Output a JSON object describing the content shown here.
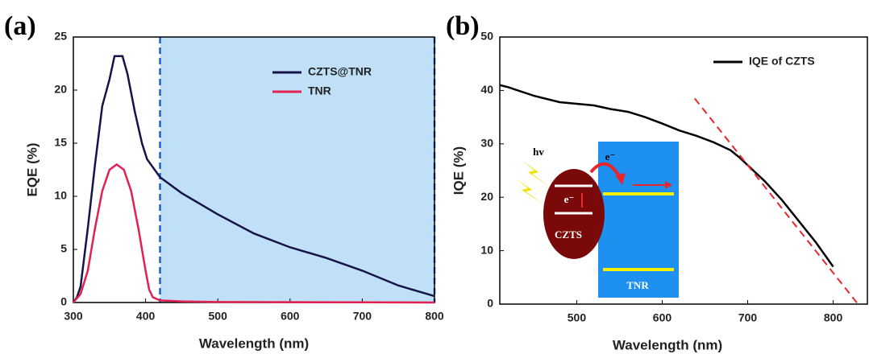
{
  "chart_data": [
    {
      "type": "line",
      "panel_label": "(a)",
      "xlabel": "Wavelength (nm)",
      "ylabel": "EQE (%)",
      "xlim": [
        300,
        800
      ],
      "ylim": [
        0,
        25
      ],
      "xticks": [
        300,
        400,
        500,
        600,
        700,
        800
      ],
      "yticks": [
        0,
        5,
        10,
        15,
        20,
        25
      ],
      "shade": {
        "x": [
          420,
          800
        ],
        "color": "#bfe0f7",
        "edge_color": "#1f5fd6"
      },
      "legend": "upper right",
      "series": [
        {
          "name": "CZTS@TNR",
          "color": "#14144a",
          "x": [
            300,
            305,
            310,
            320,
            330,
            340,
            350,
            357,
            368,
            375,
            385,
            395,
            402,
            420,
            450,
            500,
            550,
            600,
            650,
            700,
            750,
            800
          ],
          "values": [
            0,
            0.5,
            1.5,
            7,
            13,
            18.5,
            21,
            23.2,
            23.2,
            21.5,
            18,
            15,
            13.5,
            11.8,
            10.3,
            8.3,
            6.5,
            5.2,
            4.2,
            3,
            1.6,
            0.6
          ]
        },
        {
          "name": "TNR",
          "color": "#e3204f",
          "x": [
            300,
            310,
            320,
            330,
            340,
            350,
            360,
            370,
            380,
            390,
            400,
            405,
            410,
            420,
            450,
            500,
            800
          ],
          "values": [
            0,
            0.8,
            3,
            7,
            10.5,
            12.5,
            13,
            12.5,
            10.5,
            7,
            3,
            1.2,
            0.5,
            0.2,
            0.1,
            0.05,
            0
          ]
        }
      ]
    },
    {
      "type": "line",
      "panel_label": "(b)",
      "xlabel": "Wavelength (nm)",
      "ylabel": "IQE (%)",
      "xlim": [
        410,
        840
      ],
      "ylim": [
        0,
        50
      ],
      "xticks": [
        500,
        600,
        700,
        800
      ],
      "yticks": [
        0,
        10,
        20,
        30,
        40,
        50
      ],
      "legend": "upper right",
      "series": [
        {
          "name": "IQE of CZTS",
          "color": "#000000",
          "x": [
            410,
            420,
            450,
            480,
            500,
            520,
            540,
            560,
            580,
            600,
            620,
            640,
            660,
            680,
            690,
            700,
            720,
            740,
            760,
            780,
            800
          ],
          "values": [
            41,
            40.6,
            39,
            37.8,
            37.5,
            37.2,
            36.5,
            36,
            35,
            33.8,
            32.5,
            31.5,
            30.3,
            28.8,
            27.5,
            26,
            23,
            19.5,
            15.5,
            11.5,
            7
          ]
        }
      ],
      "fit_line": {
        "color": "#e8262b",
        "x": [
          638,
          829
        ],
        "values": [
          38.5,
          0
        ]
      },
      "inset": {
        "labels": [
          "hv",
          "e⁻",
          "e⁻",
          "CZTS",
          "TNR"
        ]
      }
    }
  ]
}
